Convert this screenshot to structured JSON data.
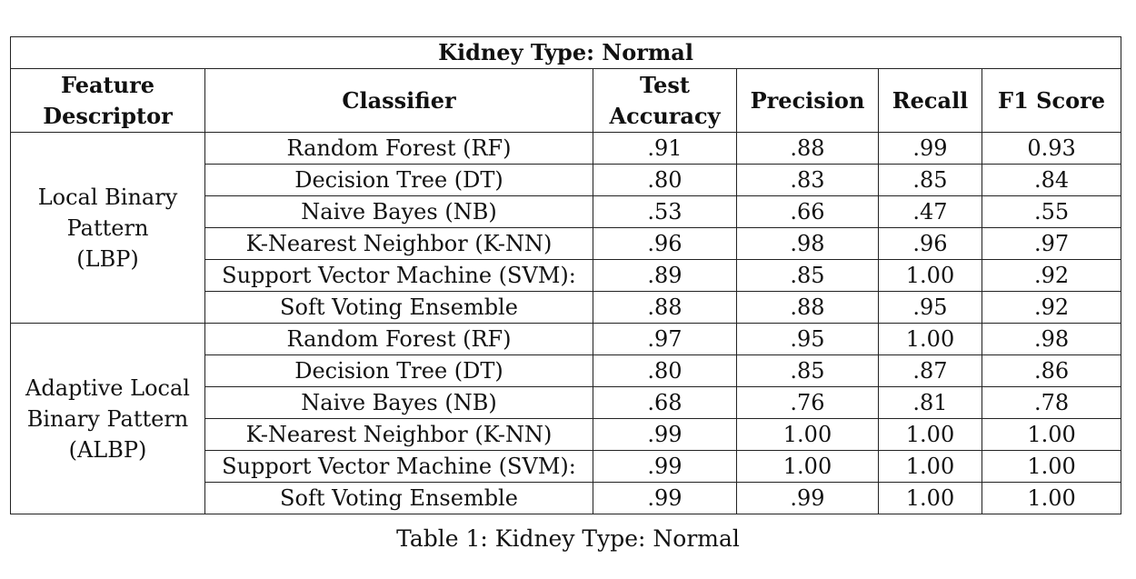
{
  "table": {
    "title": "Kidney Type: Normal",
    "headers": {
      "feature_descriptor": [
        "Feature",
        "Descriptor"
      ],
      "classifier": "Classifier",
      "test_accuracy": [
        "Test",
        "Accuracy"
      ],
      "precision": "Precision",
      "recall": "Recall",
      "f1_score": "F1 Score"
    },
    "groups": [
      {
        "descriptor_lines": [
          "Local Binary",
          "Pattern",
          "(LBP)"
        ],
        "rows": [
          {
            "classifier": "Random Forest (RF)",
            "test_accuracy": ".91",
            "precision": ".88",
            "recall": ".99",
            "f1": "0.93"
          },
          {
            "classifier": "Decision Tree (DT)",
            "test_accuracy": ".80",
            "precision": ".83",
            "recall": ".85",
            "f1": ".84"
          },
          {
            "classifier": "Naive Bayes (NB)",
            "test_accuracy": ".53",
            "precision": ".66",
            "recall": ".47",
            "f1": ".55"
          },
          {
            "classifier": "K-Nearest Neighbor (K-NN)",
            "test_accuracy": ".96",
            "precision": ".98",
            "recall": ".96",
            "f1": ".97"
          },
          {
            "classifier": "Support Vector Machine (SVM):",
            "test_accuracy": ".89",
            "precision": ".85",
            "recall": "1.00",
            "f1": ".92"
          },
          {
            "classifier": "Soft Voting Ensemble",
            "test_accuracy": ".88",
            "precision": ".88",
            "recall": ".95",
            "f1": ".92"
          }
        ]
      },
      {
        "descriptor_lines": [
          "Adaptive Local",
          "Binary Pattern",
          "(ALBP)"
        ],
        "rows": [
          {
            "classifier": "Random Forest (RF)",
            "test_accuracy": ".97",
            "precision": ".95",
            "recall": "1.00",
            "f1": ".98"
          },
          {
            "classifier": "Decision Tree (DT)",
            "test_accuracy": ".80",
            "precision": ".85",
            "recall": ".87",
            "f1": ".86"
          },
          {
            "classifier": "Naive Bayes (NB)",
            "test_accuracy": ".68",
            "precision": ".76",
            "recall": ".81",
            "f1": ".78"
          },
          {
            "classifier": "K-Nearest Neighbor (K-NN)",
            "test_accuracy": ".99",
            "precision": "1.00",
            "recall": "1.00",
            "f1": "1.00"
          },
          {
            "classifier": "Support Vector Machine (SVM):",
            "test_accuracy": ".99",
            "precision": "1.00",
            "recall": "1.00",
            "f1": "1.00"
          },
          {
            "classifier": "Soft Voting Ensemble",
            "test_accuracy": ".99",
            "precision": ".99",
            "recall": "1.00",
            "f1": "1.00"
          }
        ]
      }
    ]
  },
  "caption": "Table 1: Kidney Type: Normal"
}
